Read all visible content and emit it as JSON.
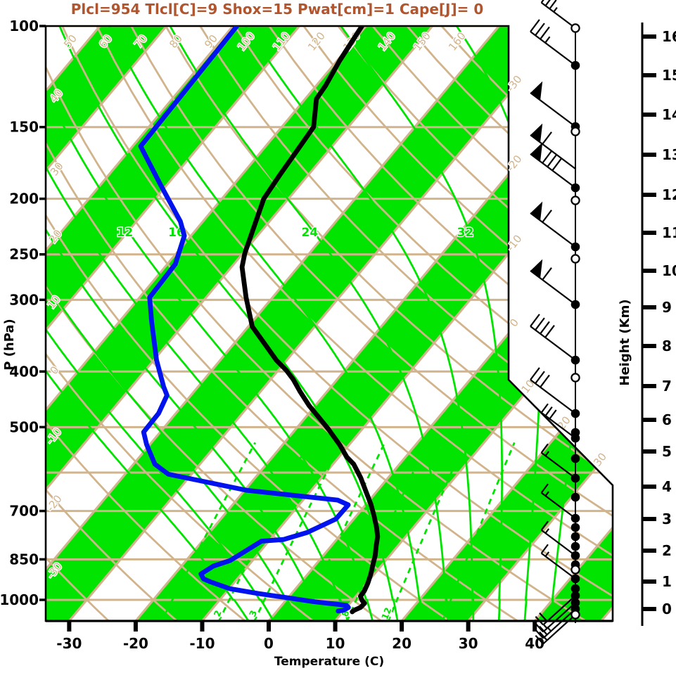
{
  "title": {
    "text": "Plcl=954 Tlcl[C]=9 Shox=15 Pwat[cm]=1 Cape[J]= 0"
  },
  "colors": {
    "title": "#b0552d",
    "tan": "#d2b48c",
    "green": "#00e400",
    "blue": "#0013ee",
    "black": "#000000",
    "frame": "#000000"
  },
  "axes": {
    "x_label": "Temperature (C)",
    "y_left_label": "P (hPa)",
    "y_right_label": "Height (Km)"
  },
  "chart_data": {
    "type": "skewt_logp_sounding",
    "title": "Plcl=954 Tlcl[C]=9 Shox=15 Pwat[cm]=1 Cape[J]= 0",
    "xlabel": "Temperature (C)",
    "ylabel_left": "P (hPa)",
    "ylabel_right": "Height (Km)",
    "surface_parameters": {
      "Plcl": 954,
      "Tlcl_C": 9,
      "Shox": 15,
      "Pwat_cm": 1,
      "Cape_J": 0
    },
    "pressure_ticks_hPa": [
      100,
      150,
      200,
      250,
      300,
      400,
      500,
      700,
      850,
      1000
    ],
    "pressure_gridlines_hPa": [
      100,
      150,
      200,
      250,
      300,
      400,
      500,
      600,
      700,
      850,
      1000
    ],
    "temperature_ticks_C": [
      -30,
      -20,
      -10,
      0,
      10,
      20,
      30,
      40
    ],
    "height_ticks_km_ypx": [
      [
        16,
        52
      ],
      [
        15,
        107
      ],
      [
        14,
        163
      ],
      [
        13,
        220
      ],
      [
        12,
        277
      ],
      [
        11,
        331
      ],
      [
        10,
        385
      ],
      [
        9,
        437
      ],
      [
        8,
        492
      ],
      [
        7,
        549
      ],
      [
        6,
        597
      ],
      [
        5,
        642
      ],
      [
        4,
        692
      ],
      [
        3,
        738
      ],
      [
        2,
        783
      ],
      [
        1,
        827
      ],
      [
        0,
        866
      ]
    ],
    "isotherm_range_C": {
      "start": -130,
      "end": 50,
      "step": 10
    },
    "isotherm_labels_right_C": [
      -30,
      -20,
      -10,
      0
    ],
    "isotherm_labels_diagonal_C": [
      10,
      20,
      30
    ],
    "dry_adiabat_range_C": {
      "start": -40,
      "end": 160,
      "step": 10
    },
    "dry_adiabat_labels_top_C": [
      50,
      60,
      70,
      80,
      90,
      100,
      110,
      120,
      130,
      140,
      150,
      160
    ],
    "dry_adiabat_labels_left_C": [
      40,
      30,
      20,
      10,
      0,
      -10,
      -20,
      -30
    ],
    "moist_adiabats_C": [
      -8,
      -4,
      0,
      4,
      8,
      12,
      16,
      20,
      24,
      28,
      32,
      36,
      40
    ],
    "moist_adiabat_labels_C": [
      12,
      16,
      24,
      32
    ],
    "mixing_ratio_lines_gkg": [
      1,
      2,
      3,
      5,
      8,
      12,
      20
    ],
    "mixing_ratio_labels_gkg": [
      2,
      3,
      8,
      12
    ],
    "temperature_profile_pT": [
      [
        100,
        -60.6
      ],
      [
        115,
        -59.6
      ],
      [
        127,
        -58.6
      ],
      [
        134,
        -58.3
      ],
      [
        150,
        -55.2
      ],
      [
        166,
        -54.7
      ],
      [
        181,
        -54.3
      ],
      [
        200,
        -53.7
      ],
      [
        222,
        -51.8
      ],
      [
        249,
        -49.7
      ],
      [
        263,
        -48.4
      ],
      [
        297,
        -44.0
      ],
      [
        334,
        -39.4
      ],
      [
        359,
        -35.2
      ],
      [
        382,
        -31.6
      ],
      [
        398,
        -28.8
      ],
      [
        413,
        -26.6
      ],
      [
        434,
        -24.0
      ],
      [
        459,
        -20.9
      ],
      [
        480,
        -18.1
      ],
      [
        504,
        -15.1
      ],
      [
        537,
        -11.4
      ],
      [
        564,
        -8.8
      ],
      [
        580,
        -6.9
      ],
      [
        613,
        -4.1
      ],
      [
        649,
        -1.5
      ],
      [
        681,
        0.7
      ],
      [
        713,
        2.6
      ],
      [
        748,
        4.5
      ],
      [
        776,
        5.8
      ],
      [
        807,
        6.8
      ],
      [
        837,
        7.8
      ],
      [
        868,
        8.6
      ],
      [
        903,
        9.5
      ],
      [
        937,
        10.2
      ],
      [
        964,
        10.6
      ],
      [
        986,
        10.7
      ],
      [
        1003,
        11.5
      ],
      [
        1014,
        12.2
      ],
      [
        1031,
        12.1
      ],
      [
        1043,
        11.5
      ],
      [
        1049,
        11.4
      ]
    ],
    "dewpoint_profile_pT": [
      [
        100,
        -79.4
      ],
      [
        162,
        -78.8
      ],
      [
        189,
        -71.0
      ],
      [
        219,
        -63.4
      ],
      [
        232,
        -61.0
      ],
      [
        260,
        -58.8
      ],
      [
        297,
        -58.5
      ],
      [
        327,
        -55.2
      ],
      [
        382,
        -49.6
      ],
      [
        425,
        -45.2
      ],
      [
        440,
        -43.6
      ],
      [
        473,
        -42.6
      ],
      [
        510,
        -42.5
      ],
      [
        536,
        -40.5
      ],
      [
        580,
        -36.8
      ],
      [
        604,
        -33.5
      ],
      [
        644,
        -19.8
      ],
      [
        670,
        -4.8
      ],
      [
        683,
        -2.6
      ],
      [
        723,
        -2.7
      ],
      [
        763,
        -5.3
      ],
      [
        785,
        -8.0
      ],
      [
        790,
        -11.1
      ],
      [
        823,
        -12.3
      ],
      [
        854,
        -13.4
      ],
      [
        873,
        -15.2
      ],
      [
        901,
        -16.1
      ],
      [
        919,
        -15.1
      ],
      [
        930,
        -13.7
      ],
      [
        956,
        -9.9
      ],
      [
        975,
        -5.0
      ],
      [
        991,
        -0.3
      ],
      [
        1008,
        4.5
      ],
      [
        1017,
        7.9
      ],
      [
        1022,
        9.7
      ],
      [
        1031,
        10.3
      ],
      [
        1043,
        9.9
      ],
      [
        1046,
        9.2
      ]
    ],
    "wind_barbs_y_marker_flags_full_half_dir_small": [
      [
        40,
        "circle",
        0,
        3,
        1,
        "ul",
        1
      ],
      [
        93,
        "dot",
        0,
        3,
        1,
        "ul",
        0
      ],
      [
        180,
        "dot",
        1,
        0,
        0,
        "ul",
        0
      ],
      [
        187,
        "circle",
        0,
        0,
        0,
        "ul",
        0
      ],
      [
        240,
        "",
        1,
        1,
        0,
        "ul",
        0
      ],
      [
        267,
        "dot",
        1,
        3,
        0,
        "ul",
        0
      ],
      [
        285,
        "circle",
        0,
        0,
        0,
        "ul",
        0
      ],
      [
        351,
        "dot",
        1,
        1,
        0,
        "ul",
        0
      ],
      [
        368,
        "circle",
        0,
        0,
        0,
        "ul",
        0
      ],
      [
        433,
        "dot",
        1,
        1,
        0,
        "ul",
        0
      ],
      [
        512,
        "dot",
        0,
        4,
        0,
        "ul",
        0
      ],
      [
        537,
        "circle",
        0,
        0,
        0,
        "ul",
        0
      ],
      [
        588,
        "dot",
        0,
        3,
        0,
        "ul",
        0
      ],
      [
        615,
        "dot",
        0,
        0,
        0,
        "ul",
        0
      ],
      [
        623,
        "dot",
        0,
        3,
        0,
        "ul",
        1
      ],
      [
        652,
        "dot",
        0,
        0,
        0,
        "ul",
        0
      ],
      [
        680,
        "dot",
        0,
        1,
        1,
        "ul",
        1
      ],
      [
        707,
        "dot",
        0,
        0,
        0,
        "ul",
        0
      ],
      [
        737,
        "dot",
        0,
        1,
        1,
        "ul",
        1
      ],
      [
        750,
        "dot",
        0,
        0,
        0,
        "ul",
        0
      ],
      [
        763,
        "dot",
        0,
        0,
        0,
        "ul",
        0
      ],
      [
        777,
        "dot",
        0,
        0,
        0,
        "ul",
        0
      ],
      [
        790,
        "dot",
        0,
        1,
        1,
        "ul",
        1
      ],
      [
        803,
        "dot",
        0,
        0,
        0,
        "ul",
        0
      ],
      [
        810,
        "circle",
        0,
        0,
        0,
        "ul",
        0
      ],
      [
        823,
        "dot",
        0,
        1,
        1,
        "ul",
        1
      ],
      [
        837,
        "dot",
        0,
        0,
        0,
        "ul",
        0
      ],
      [
        847,
        "dot",
        0,
        2,
        0,
        "dl",
        1
      ],
      [
        857,
        "dot",
        0,
        1,
        1,
        "dl",
        1
      ],
      [
        866,
        "dot",
        0,
        2,
        1,
        "dl",
        1
      ],
      [
        874,
        "circle",
        0,
        2,
        0,
        "dl",
        1
      ]
    ]
  }
}
